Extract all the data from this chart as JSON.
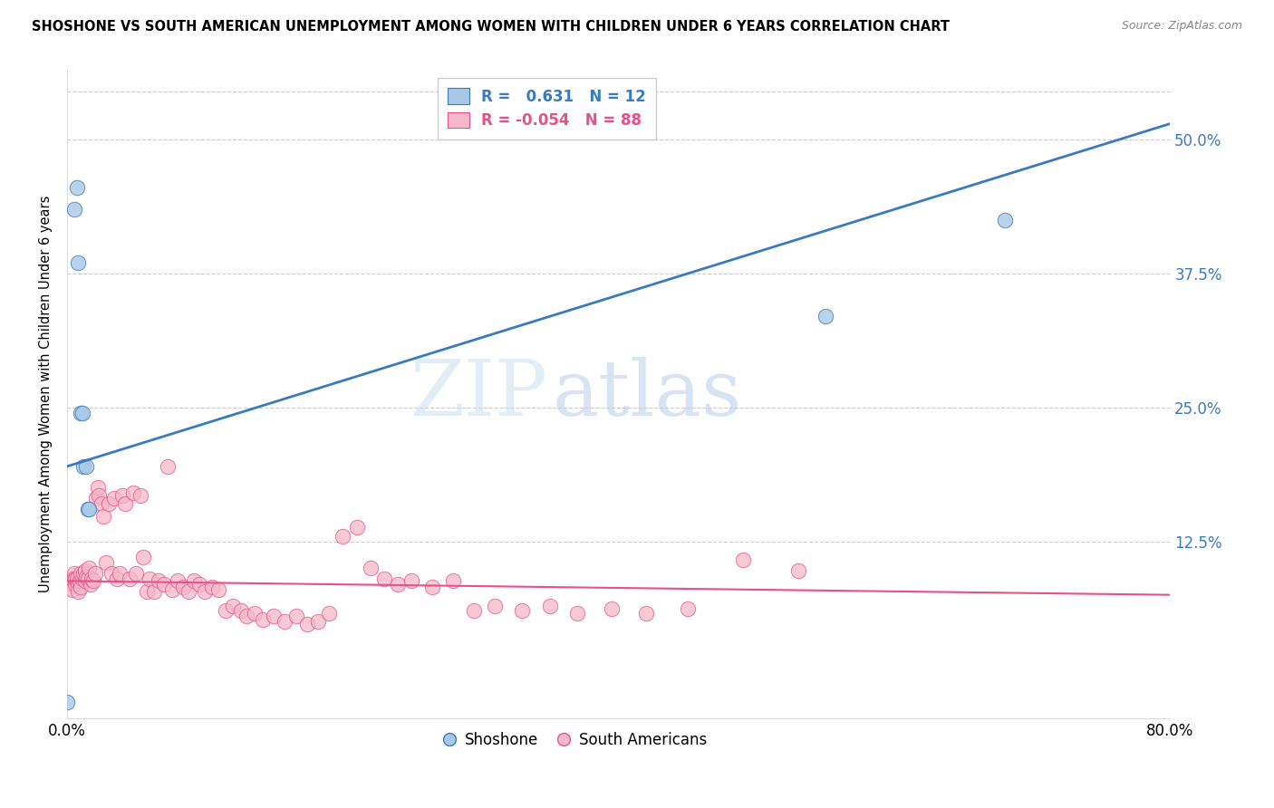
{
  "title": "SHOSHONE VS SOUTH AMERICAN UNEMPLOYMENT AMONG WOMEN WITH CHILDREN UNDER 6 YEARS CORRELATION CHART",
  "source": "Source: ZipAtlas.com",
  "ylabel": "Unemployment Among Women with Children Under 6 years",
  "ytick_labels": [
    "50.0%",
    "37.5%",
    "25.0%",
    "12.5%"
  ],
  "ytick_values": [
    0.5,
    0.375,
    0.25,
    0.125
  ],
  "xlim": [
    0.0,
    0.8
  ],
  "ylim": [
    -0.04,
    0.565
  ],
  "legend_blue_label": "Shoshone",
  "legend_pink_label": "South Americans",
  "R_blue": 0.631,
  "N_blue": 12,
  "R_pink": -0.054,
  "N_pink": 88,
  "blue_color": "#a8c8e8",
  "pink_color": "#f4b8c8",
  "blue_line_color": "#3a7abf",
  "pink_line_color": "#e8508a",
  "watermark_zip": "ZIP",
  "watermark_atlas": "atlas",
  "blue_line_x0": 0.0,
  "blue_line_y0": 0.195,
  "blue_line_x1": 0.8,
  "blue_line_y1": 0.515,
  "pink_line_x0": 0.0,
  "pink_line_y0": 0.088,
  "pink_line_x1": 0.8,
  "pink_line_y1": 0.075,
  "shoshone_x": [
    0.005,
    0.007,
    0.008,
    0.01,
    0.011,
    0.012,
    0.014,
    0.015,
    0.016,
    0.55,
    0.68,
    0.0
  ],
  "shoshone_y": [
    0.435,
    0.455,
    0.385,
    0.245,
    0.245,
    0.195,
    0.195,
    0.155,
    0.155,
    0.335,
    0.425,
    -0.025
  ],
  "sa_x": [
    0.003,
    0.004,
    0.004,
    0.005,
    0.005,
    0.006,
    0.006,
    0.007,
    0.007,
    0.008,
    0.008,
    0.009,
    0.01,
    0.01,
    0.011,
    0.012,
    0.013,
    0.013,
    0.014,
    0.015,
    0.016,
    0.017,
    0.018,
    0.019,
    0.02,
    0.021,
    0.022,
    0.023,
    0.025,
    0.026,
    0.028,
    0.03,
    0.032,
    0.034,
    0.036,
    0.038,
    0.04,
    0.042,
    0.045,
    0.048,
    0.05,
    0.053,
    0.055,
    0.058,
    0.06,
    0.063,
    0.066,
    0.07,
    0.073,
    0.076,
    0.08,
    0.084,
    0.088,
    0.092,
    0.096,
    0.1,
    0.105,
    0.11,
    0.115,
    0.12,
    0.126,
    0.13,
    0.136,
    0.142,
    0.15,
    0.158,
    0.166,
    0.174,
    0.182,
    0.19,
    0.2,
    0.21,
    0.22,
    0.23,
    0.24,
    0.25,
    0.265,
    0.28,
    0.295,
    0.31,
    0.33,
    0.35,
    0.37,
    0.395,
    0.42,
    0.45,
    0.49,
    0.53
  ],
  "sa_y": [
    0.085,
    0.08,
    0.09,
    0.095,
    0.09,
    0.085,
    0.09,
    0.088,
    0.09,
    0.085,
    0.078,
    0.088,
    0.095,
    0.082,
    0.09,
    0.095,
    0.098,
    0.088,
    0.092,
    0.09,
    0.1,
    0.085,
    0.09,
    0.088,
    0.095,
    0.165,
    0.175,
    0.168,
    0.16,
    0.148,
    0.105,
    0.16,
    0.095,
    0.165,
    0.09,
    0.095,
    0.168,
    0.16,
    0.09,
    0.17,
    0.095,
    0.168,
    0.11,
    0.078,
    0.09,
    0.078,
    0.088,
    0.085,
    0.195,
    0.08,
    0.088,
    0.082,
    0.078,
    0.088,
    0.085,
    0.078,
    0.082,
    0.08,
    0.06,
    0.065,
    0.06,
    0.055,
    0.058,
    0.052,
    0.055,
    0.05,
    0.055,
    0.048,
    0.05,
    0.058,
    0.13,
    0.138,
    0.1,
    0.09,
    0.085,
    0.088,
    0.082,
    0.088,
    0.06,
    0.065,
    0.06,
    0.065,
    0.058,
    0.062,
    0.058,
    0.062,
    0.108,
    0.098
  ]
}
